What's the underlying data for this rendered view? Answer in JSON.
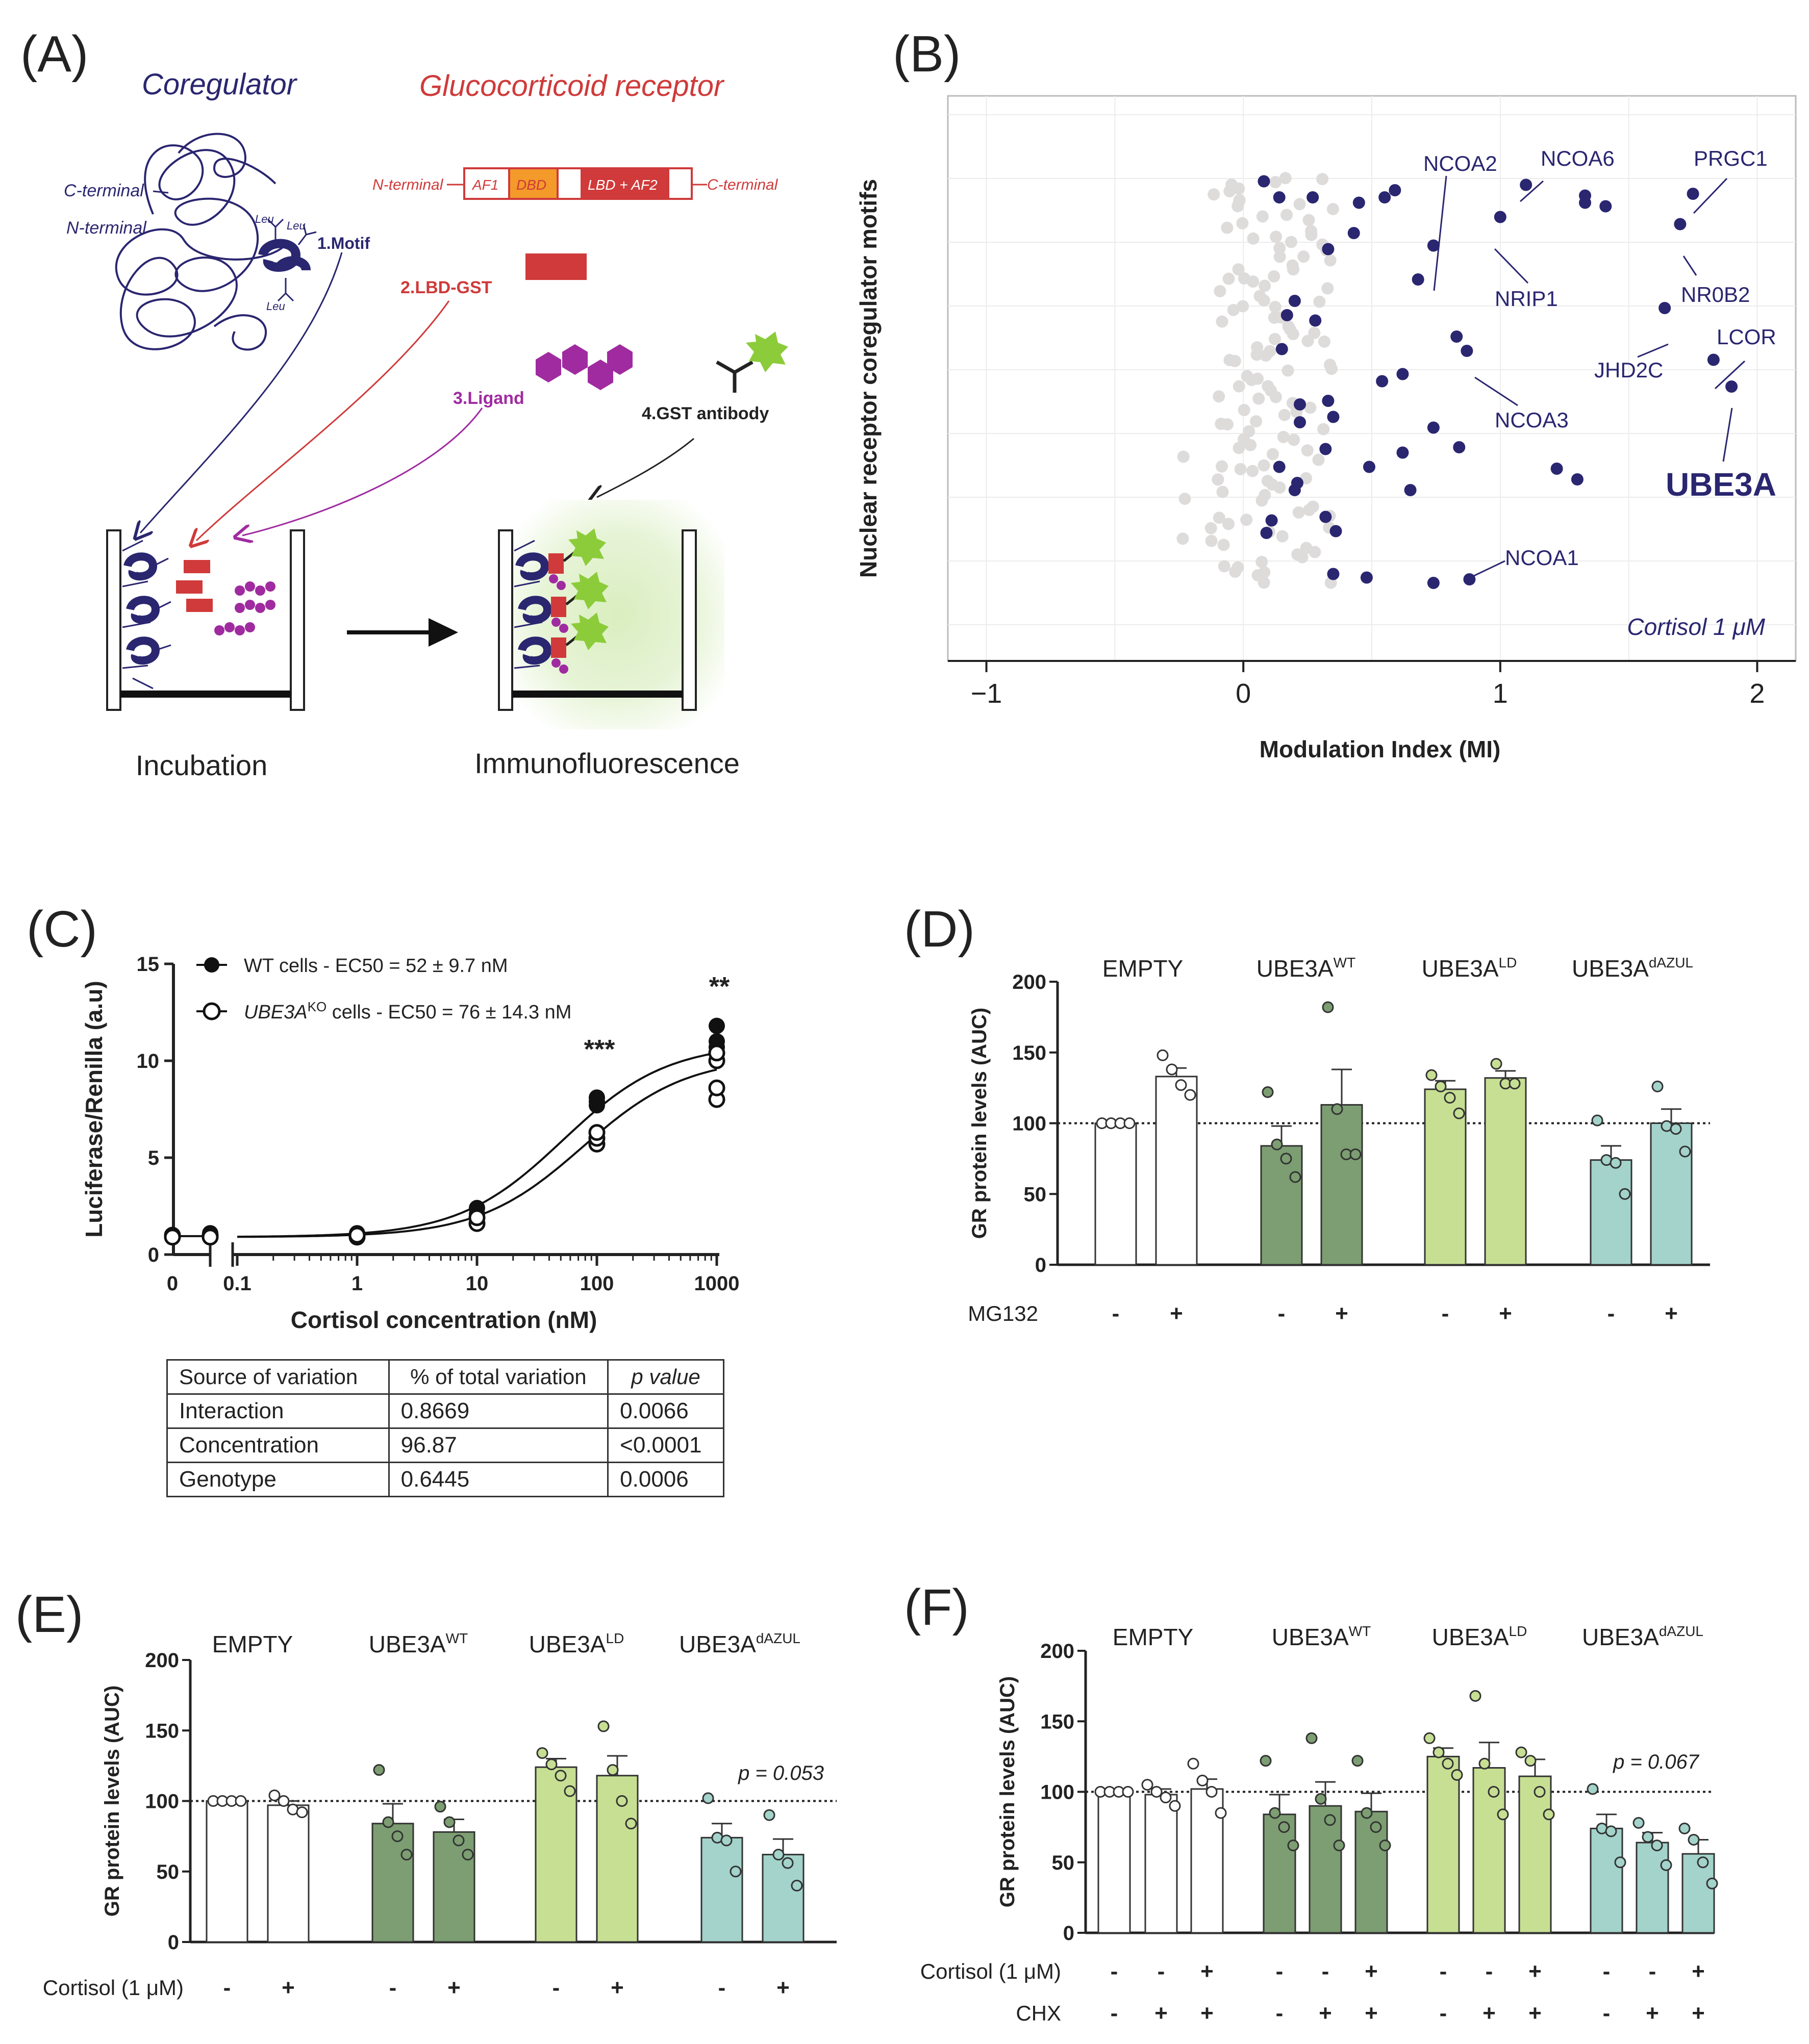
{
  "panels": {
    "A": "(A)",
    "B": "(B)",
    "C": "(C)",
    "D": "(D)",
    "E": "(E)",
    "F": "(F)"
  },
  "panelA": {
    "coregulator": "Coregulator",
    "gr_title": "Glucocorticoid receptor",
    "c_terminal_left": "C-terminal",
    "n_terminal_left": "N-terminal",
    "leu": "Leu",
    "motif": "1.Motif",
    "n_terminal_gr": "N-terminal",
    "c_terminal_gr": "C-terminal",
    "af1": "AF1",
    "dbd": "DBD",
    "lbd_af2": "LBD + AF2",
    "lbd_gst": "2.LBD-GST",
    "ligand": "3.Ligand",
    "gst_antibody": "4.GST antibody",
    "incubation": "Incubation",
    "immunofluorescence": "Immunofluorescence"
  },
  "panelB": {
    "ylabel": "Nuclear receptor coregulator motifs",
    "xlabel": "Modulation Index (MI)",
    "note": "Cortisol 1 μM",
    "labels": [
      "NCOA2",
      "NCOA6",
      "PRGC1",
      "NRIP1",
      "NR0B2",
      "LCOR",
      "JHD2C",
      "NCOA3",
      "UBE3A",
      "NCOA1"
    ]
  },
  "panelC_legend": {
    "wt": "WT cells - EC50 = 52 ± 9.7 nM",
    "ko_gene": "UBE3A",
    "ko_sup": "KO",
    "ko_rest": " cells - EC50 = 76 ± 14.3 nM",
    "sig1": "***",
    "sig2": "**"
  },
  "table": {
    "headers": [
      "Source of variation",
      "% of total variation",
      "p value"
    ],
    "rows": [
      [
        "Interaction",
        "0.8669",
        "0.0066"
      ],
      [
        "Concentration",
        "96.87",
        "<0.0001"
      ],
      [
        "Genotype",
        "0.6445",
        "0.0006"
      ]
    ]
  },
  "groups": {
    "empty": "EMPTY",
    "ube3a": "UBE3A",
    "wt": "WT",
    "ld": "LD",
    "dazul": "dAZUL"
  },
  "row_labels": {
    "mg132": "MG132",
    "cortisol": "Cortisol (1 μM)",
    "chx": "CHX",
    "minus": "-",
    "plus": "+"
  },
  "pvalues": {
    "E": "p = 0.053",
    "F": "p = 0.067"
  },
  "colors": {
    "navy": "#2a2670",
    "gray_dot": "#dedbdb",
    "empty": "#ffffff",
    "wt": "#7c9e72",
    "ld": "#c7df93",
    "dazul": "#a3d3cb",
    "red": "#d03a3a",
    "purple": "#a02ba0",
    "green": "#8ccc3a"
  },
  "chart_data": [
    {
      "type": "scatter",
      "panel": "B",
      "xlabel": "Modulation Index (MI)",
      "ylabel": "Nuclear receptor coregulator motifs",
      "xlim": [
        -1.15,
        2.15
      ],
      "xticks": [
        -1,
        0,
        1,
        2
      ],
      "tick_labels": [
        "−1",
        "0",
        "1",
        "2"
      ],
      "highlighted_points": [
        {
          "x": 0.08,
          "y": 0.1
        },
        {
          "x": 0.59,
          "y": 0.2
        },
        {
          "x": 0.55,
          "y": 0.28
        },
        {
          "x": 0.14,
          "y": 0.28
        },
        {
          "x": 0.27,
          "y": 0.28
        },
        {
          "x": 1.33,
          "y": 0.26
        },
        {
          "x": 1.33,
          "y": 0.34
        },
        {
          "x": 1.41,
          "y": 0.38
        },
        {
          "x": 1.75,
          "y": 0.24
        },
        {
          "x": 1.1,
          "y": 0.14
        },
        {
          "x": 0.45,
          "y": 0.34
        },
        {
          "x": 1.0,
          "y": 0.5
        },
        {
          "x": 1.7,
          "y": 0.58
        },
        {
          "x": 0.43,
          "y": 0.68
        },
        {
          "x": 0.33,
          "y": 0.86
        },
        {
          "x": 0.74,
          "y": 0.82
        },
        {
          "x": 0.68,
          "y": 1.2
        },
        {
          "x": 0.2,
          "y": 1.44
        },
        {
          "x": 0.17,
          "y": 1.6
        },
        {
          "x": 0.28,
          "y": 1.66
        },
        {
          "x": 0.83,
          "y": 1.84
        },
        {
          "x": 0.87,
          "y": 2.0
        },
        {
          "x": 1.64,
          "y": 1.52
        },
        {
          "x": 1.83,
          "y": 2.1
        },
        {
          "x": 1.9,
          "y": 2.4
        },
        {
          "x": 0.15,
          "y": 1.98
        },
        {
          "x": 0.54,
          "y": 2.34
        },
        {
          "x": 0.62,
          "y": 2.26
        },
        {
          "x": 0.22,
          "y": 2.6
        },
        {
          "x": 0.33,
          "y": 2.56
        },
        {
          "x": 0.35,
          "y": 2.74
        },
        {
          "x": 0.22,
          "y": 2.8
        },
        {
          "x": 0.74,
          "y": 2.86
        },
        {
          "x": 0.84,
          "y": 3.08
        },
        {
          "x": 0.62,
          "y": 3.14
        },
        {
          "x": 0.49,
          "y": 3.3
        },
        {
          "x": 0.32,
          "y": 3.1
        },
        {
          "x": 0.14,
          "y": 3.3
        },
        {
          "x": 1.22,
          "y": 3.32
        },
        {
          "x": 1.3,
          "y": 3.44
        },
        {
          "x": 0.65,
          "y": 3.56
        },
        {
          "x": 0.21,
          "y": 3.48
        },
        {
          "x": 0.2,
          "y": 3.56
        },
        {
          "x": 0.32,
          "y": 3.86
        },
        {
          "x": 0.11,
          "y": 3.9
        },
        {
          "x": 0.36,
          "y": 4.02
        },
        {
          "x": 0.09,
          "y": 4.04
        },
        {
          "x": 0.35,
          "y": 4.5
        },
        {
          "x": 0.48,
          "y": 4.54
        },
        {
          "x": 0.74,
          "y": 4.6
        },
        {
          "x": 0.88,
          "y": 4.56
        }
      ],
      "n_gray_points": 130
    },
    {
      "type": "line",
      "panel": "C",
      "xlabel": "Cortisol concentration (nM)",
      "ylabel": "Luciferase/Renilla (a.u)",
      "xscale": "log",
      "x_tick_labels": [
        "0",
        "0.1",
        "1",
        "10",
        "100",
        "1000"
      ],
      "ylim": [
        0,
        15
      ],
      "yticks": [
        0,
        5,
        10,
        15
      ],
      "series": [
        {
          "name": "WT cells",
          "ec50_nM": 52,
          "bottom": 0.9,
          "top": 10.9,
          "points": [
            [
              0,
              1.0
            ],
            [
              0.05,
              1.0
            ],
            [
              1,
              1.0
            ],
            [
              10,
              2.3
            ],
            [
              100,
              7.9
            ],
            [
              1000,
              10.9
            ]
          ],
          "replicates": {
            "0": [
              1.0,
              0.9
            ],
            "0.05": [
              1.0,
              1.1
            ],
            "1": [
              1.0,
              1.1
            ],
            "10": [
              2.1,
              2.4
            ],
            "100": [
              7.7,
              7.9,
              8.1
            ],
            "1000": [
              10.4,
              10.7,
              11.0,
              11.8
            ]
          }
        },
        {
          "name": "UBE3A KO cells",
          "ec50_nM": 76,
          "bottom": 0.9,
          "top": 10.2,
          "points": [
            [
              0,
              1.0
            ],
            [
              0.05,
              1.0
            ],
            [
              1,
              1.0
            ],
            [
              10,
              1.8
            ],
            [
              100,
              6.0
            ],
            [
              1000,
              9.3
            ]
          ],
          "replicates": {
            "0": [
              1.0,
              0.9
            ],
            "0.05": [
              1.0,
              0.9
            ],
            "1": [
              0.9,
              1.0
            ],
            "10": [
              1.6,
              1.9
            ],
            "100": [
              5.7,
              6.0,
              6.3
            ],
            "1000": [
              8.0,
              8.6,
              10.0,
              10.4
            ]
          }
        }
      ]
    },
    {
      "type": "bar",
      "panel": "D",
      "ylabel": "GR protein levels (AUC)",
      "ylim": [
        0,
        200
      ],
      "yticks": [
        0,
        50,
        100,
        150,
        200
      ],
      "reference_line": 100,
      "conditions": [
        "MG132"
      ],
      "bars": [
        {
          "group": "EMPTY",
          "mg132": "-",
          "value": 100,
          "sem": 0,
          "points": [
            100,
            100,
            100,
            100
          ]
        },
        {
          "group": "EMPTY",
          "mg132": "+",
          "value": 133,
          "sem": 6,
          "points": [
            148,
            138,
            127,
            120
          ]
        },
        {
          "group": "WT",
          "mg132": "-",
          "value": 84,
          "sem": 14,
          "points": [
            122,
            85,
            75,
            62
          ]
        },
        {
          "group": "WT",
          "mg132": "+",
          "value": 113,
          "sem": 25,
          "points": [
            182,
            110,
            78,
            78
          ]
        },
        {
          "group": "LD",
          "mg132": "-",
          "value": 124,
          "sem": 6,
          "points": [
            134,
            126,
            118,
            107
          ]
        },
        {
          "group": "LD",
          "mg132": "+",
          "value": 132,
          "sem": 5,
          "points": [
            142,
            128,
            128
          ]
        },
        {
          "group": "dAZUL",
          "mg132": "-",
          "value": 74,
          "sem": 10,
          "points": [
            102,
            74,
            72,
            50
          ]
        },
        {
          "group": "dAZUL",
          "mg132": "+",
          "value": 100,
          "sem": 10,
          "points": [
            126,
            98,
            96,
            80
          ]
        }
      ]
    },
    {
      "type": "bar",
      "panel": "E",
      "ylabel": "GR protein levels (AUC)",
      "ylim": [
        0,
        200
      ],
      "yticks": [
        0,
        50,
        100,
        150,
        200
      ],
      "reference_line": 100,
      "conditions": [
        "Cortisol (1 μM)"
      ],
      "annotation": "p = 0.053",
      "bars": [
        {
          "group": "EMPTY",
          "cortisol": "-",
          "value": 100,
          "sem": 0,
          "points": [
            100,
            100,
            100,
            100
          ]
        },
        {
          "group": "EMPTY",
          "cortisol": "+",
          "value": 97,
          "sem": 3,
          "points": [
            104,
            100,
            94,
            92
          ]
        },
        {
          "group": "WT",
          "cortisol": "-",
          "value": 84,
          "sem": 14,
          "points": [
            122,
            85,
            75,
            62
          ]
        },
        {
          "group": "WT",
          "cortisol": "+",
          "value": 78,
          "sem": 9,
          "points": [
            96,
            85,
            72,
            62
          ]
        },
        {
          "group": "LD",
          "cortisol": "-",
          "value": 124,
          "sem": 6,
          "points": [
            134,
            126,
            118,
            107
          ]
        },
        {
          "group": "LD",
          "cortisol": "+",
          "value": 118,
          "sem": 14,
          "points": [
            153,
            122,
            100,
            84
          ]
        },
        {
          "group": "dAZUL",
          "cortisol": "-",
          "value": 74,
          "sem": 10,
          "points": [
            102,
            74,
            72,
            50
          ]
        },
        {
          "group": "dAZUL",
          "cortisol": "+",
          "value": 62,
          "sem": 11,
          "points": [
            90,
            62,
            56,
            40
          ]
        }
      ]
    },
    {
      "type": "bar",
      "panel": "F",
      "ylabel": "GR protein levels (AUC)",
      "ylim": [
        0,
        200
      ],
      "yticks": [
        0,
        50,
        100,
        150,
        200
      ],
      "reference_line": 100,
      "conditions": [
        "Cortisol (1 μM)",
        "CHX"
      ],
      "annotation": "p = 0.067",
      "bars": [
        {
          "group": "EMPTY",
          "cortisol": "-",
          "chx": "-",
          "value": 100,
          "sem": 0,
          "points": [
            100,
            100,
            100,
            100
          ]
        },
        {
          "group": "EMPTY",
          "cortisol": "-",
          "chx": "+",
          "value": 98,
          "sem": 4,
          "points": [
            105,
            100,
            96,
            90
          ]
        },
        {
          "group": "EMPTY",
          "cortisol": "+",
          "chx": "+",
          "value": 102,
          "sem": 7,
          "points": [
            120,
            108,
            100,
            85
          ]
        },
        {
          "group": "WT",
          "cortisol": "-",
          "chx": "-",
          "value": 84,
          "sem": 14,
          "points": [
            122,
            85,
            75,
            62
          ]
        },
        {
          "group": "WT",
          "cortisol": "-",
          "chx": "+",
          "value": 90,
          "sem": 17,
          "points": [
            138,
            95,
            80,
            62
          ]
        },
        {
          "group": "WT",
          "cortisol": "+",
          "chx": "+",
          "value": 86,
          "sem": 13,
          "points": [
            122,
            85,
            75,
            62
          ]
        },
        {
          "group": "LD",
          "cortisol": "-",
          "chx": "-",
          "value": 125,
          "sem": 6,
          "points": [
            138,
            128,
            120,
            112
          ]
        },
        {
          "group": "LD",
          "cortisol": "-",
          "chx": "+",
          "value": 117,
          "sem": 18,
          "points": [
            168,
            120,
            100,
            84
          ]
        },
        {
          "group": "LD",
          "cortisol": "+",
          "chx": "+",
          "value": 111,
          "sem": 12,
          "points": [
            128,
            122,
            100,
            84
          ]
        },
        {
          "group": "dAZUL",
          "cortisol": "-",
          "chx": "-",
          "value": 74,
          "sem": 10,
          "points": [
            102,
            74,
            72,
            50
          ]
        },
        {
          "group": "dAZUL",
          "cortisol": "-",
          "chx": "+",
          "value": 64,
          "sem": 7,
          "points": [
            78,
            68,
            62,
            48
          ]
        },
        {
          "group": "dAZUL",
          "cortisol": "+",
          "chx": "+",
          "value": 56,
          "sem": 10,
          "points": [
            74,
            66,
            50,
            35
          ]
        }
      ]
    }
  ]
}
